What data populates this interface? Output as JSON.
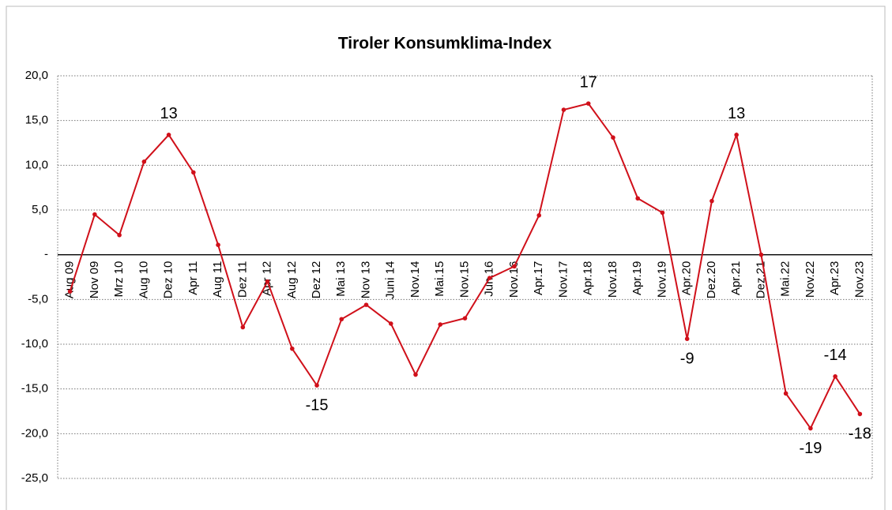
{
  "chart_data": {
    "type": "line",
    "title": "Tiroler Konsumklima-Index",
    "categories": [
      "Aug 09",
      "Nov 09",
      "Mrz 10",
      "Aug 10",
      "Dez 10",
      "Apr 11",
      "Aug 11",
      "Dez 11",
      "Apr 12",
      "Aug 12",
      "Dez 12",
      "Mai 13",
      "Nov 13",
      "Juni 14",
      "Nov.14",
      "Mai.15",
      "Nov.15",
      "Jun.16",
      "Nov.16",
      "Apr.17",
      "Nov.17",
      "Apr.18",
      "Nov.18",
      "Apr.19",
      "Nov.19",
      "Apr.20",
      "Dez.20",
      "Apr.21",
      "Dez.21",
      "Mai.22",
      "Nov.22",
      "Apr.23",
      "Nov.23"
    ],
    "series": [
      {
        "color": "#d0101a",
        "values": [
          -4.1,
          4.5,
          2.2,
          10.4,
          13.4,
          9.2,
          1.1,
          -8.1,
          -3.0,
          -10.5,
          -14.6,
          -7.2,
          -5.6,
          -7.7,
          -13.4,
          -7.8,
          -7.1,
          -2.6,
          -1.3,
          4.4,
          16.2,
          16.9,
          13.1,
          6.3,
          4.7,
          -9.4,
          6.0,
          13.4,
          0.0,
          -15.5,
          -19.4,
          -13.6,
          -17.8
        ],
        "value_labels": [
          null,
          null,
          null,
          null,
          "13",
          null,
          null,
          null,
          null,
          null,
          "-15",
          null,
          null,
          null,
          null,
          null,
          null,
          null,
          null,
          null,
          null,
          "17",
          null,
          null,
          null,
          "-9",
          null,
          "13",
          null,
          null,
          "-19",
          "-14",
          "-18"
        ]
      }
    ],
    "ylim": [
      -25,
      20
    ],
    "yticks": [
      {
        "value": -25,
        "label": "-25,0"
      },
      {
        "value": -20,
        "label": "-20,0"
      },
      {
        "value": -15,
        "label": "-15,0"
      },
      {
        "value": -10,
        "label": "-10,0"
      },
      {
        "value": -5,
        "label": "-5,0"
      },
      {
        "value": 0,
        "label": "-"
      },
      {
        "value": 5,
        "label": "5,0"
      },
      {
        "value": 10,
        "label": "10,0"
      },
      {
        "value": 15,
        "label": "15,0"
      },
      {
        "value": 20,
        "label": "20,0"
      }
    ],
    "grid": true
  }
}
